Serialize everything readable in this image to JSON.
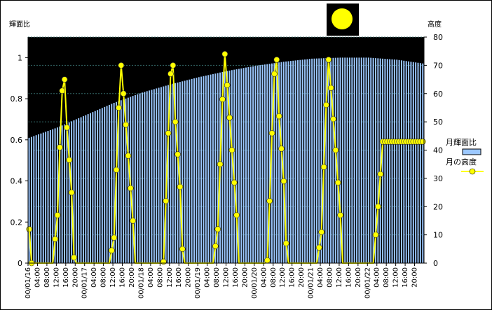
{
  "chart_data": {
    "type": "bar+line",
    "left_axis_title": "輝面比",
    "right_axis_title": "高度",
    "left_axis": {
      "min": 0,
      "max": 1.1,
      "ticks": [
        "0",
        "0.2",
        "0.4",
        "0.6",
        "0.8",
        "1"
      ]
    },
    "right_axis": {
      "min": 0,
      "max": 80,
      "ticks": [
        "0",
        "10",
        "20",
        "30",
        "40",
        "50",
        "60",
        "70",
        "80"
      ]
    },
    "x_start": "00/01/16 00:00",
    "x_interval_hours": 4,
    "x_labels": [
      "00/01/16",
      "04:00",
      "08:00",
      "12:00",
      "16:00",
      "20:00",
      "00/01/17",
      "04:00",
      "08:00",
      "12:00",
      "16:00",
      "20:00",
      "00/01/18",
      "04:00",
      "08:00",
      "12:00",
      "16:00",
      "20:00",
      "00/01/19",
      "04:00",
      "08:00",
      "12:00",
      "16:00",
      "20:00",
      "00/01/20",
      "04:00",
      "08:00",
      "12:00",
      "16:00",
      "20:00",
      "00/01/21",
      "04:00",
      "08:00",
      "12:00",
      "16:00",
      "20:00",
      "00/01/22",
      "04:00",
      "08:00",
      "12:00",
      "16:00",
      "20:00"
    ],
    "illumination_keypoints": [
      [
        0,
        0.61
      ],
      [
        12,
        0.66
      ],
      [
        24,
        0.72
      ],
      [
        36,
        0.78
      ],
      [
        48,
        0.83
      ],
      [
        60,
        0.87
      ],
      [
        72,
        0.905
      ],
      [
        84,
        0.935
      ],
      [
        96,
        0.96
      ],
      [
        108,
        0.98
      ],
      [
        120,
        0.995
      ],
      [
        132,
        1.0
      ],
      [
        144,
        1.0
      ],
      [
        156,
        0.99
      ],
      [
        168,
        0.97
      ]
    ],
    "altitude_keypoints": [
      [
        0,
        12
      ],
      [
        1,
        0
      ],
      [
        10,
        0
      ],
      [
        12,
        17
      ],
      [
        13,
        41
      ],
      [
        14,
        61
      ],
      [
        15,
        65
      ],
      [
        16,
        48
      ],
      [
        18,
        25
      ],
      [
        19,
        2
      ],
      [
        20,
        0
      ],
      [
        34,
        0
      ],
      [
        36,
        9
      ],
      [
        37,
        33
      ],
      [
        38,
        55
      ],
      [
        39,
        70
      ],
      [
        40,
        60
      ],
      [
        42,
        38
      ],
      [
        44,
        15
      ],
      [
        45,
        0
      ],
      [
        56,
        0
      ],
      [
        57,
        0.5
      ],
      [
        58,
        22
      ],
      [
        59,
        46
      ],
      [
        60,
        67
      ],
      [
        61,
        70
      ],
      [
        62,
        50
      ],
      [
        64,
        27
      ],
      [
        65,
        5
      ],
      [
        66,
        0
      ],
      [
        78,
        0
      ],
      [
        80,
        12
      ],
      [
        81,
        35
      ],
      [
        82,
        58
      ],
      [
        83,
        74
      ],
      [
        84,
        63
      ],
      [
        86,
        40
      ],
      [
        88,
        17
      ],
      [
        89,
        0
      ],
      [
        100,
        0
      ],
      [
        101,
        1
      ],
      [
        102,
        22
      ],
      [
        103,
        46
      ],
      [
        104,
        67
      ],
      [
        105,
        72
      ],
      [
        106,
        52
      ],
      [
        108,
        29
      ],
      [
        109,
        7
      ],
      [
        110,
        0
      ],
      [
        122,
        0
      ],
      [
        124,
        11
      ],
      [
        125,
        34
      ],
      [
        126,
        56
      ],
      [
        127,
        72
      ],
      [
        128,
        62
      ],
      [
        130,
        40
      ],
      [
        132,
        17
      ],
      [
        133,
        0
      ],
      [
        146,
        0
      ],
      [
        148,
        20
      ],
      [
        150,
        43
      ]
    ],
    "series": [
      {
        "name": "月輝面比",
        "kind": "bar",
        "color": "#9cc8ff",
        "axis": "left"
      },
      {
        "name": "月の高度",
        "kind": "line",
        "color": "#ffff00",
        "axis": "right"
      }
    ],
    "background": "#000000",
    "grid": true,
    "legend_position": "right"
  },
  "moon_icon": "moon-phase-icon"
}
